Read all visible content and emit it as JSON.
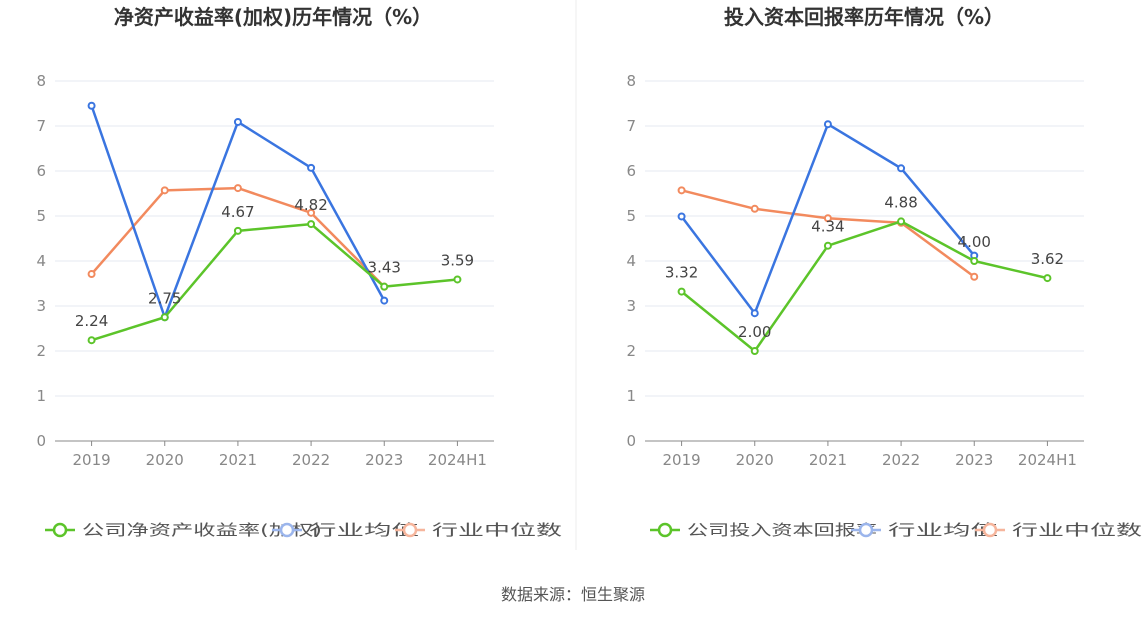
{
  "source": "数据来源：恒生聚源",
  "colors": {
    "company": "#5cc42a",
    "industry_avg": "#3a75e0",
    "industry_median": "#f28a5e",
    "legend_avg": "#9bb5ec",
    "legend_median": "#f6b59c",
    "grid": "#e6e9f2",
    "axis": "#888888"
  },
  "chart_data": [
    {
      "type": "line",
      "title": "净资产收益率(加权)历年情况（%）",
      "categories": [
        "2019",
        "2020",
        "2021",
        "2022",
        "2023",
        "2024H1"
      ],
      "ylim": [
        0,
        8
      ],
      "yticks": [
        "0",
        "1",
        "2",
        "3",
        "4",
        "5",
        "6",
        "7",
        "8"
      ],
      "grid": true,
      "legend_position": "bottom",
      "series": [
        {
          "name": "公司净资产收益率(加权)",
          "key": "company",
          "values": [
            2.24,
            2.75,
            4.67,
            4.82,
            3.43,
            3.59
          ],
          "labels": [
            "2.24",
            "2.75",
            "4.67",
            "4.82",
            "3.43",
            "3.59"
          ]
        },
        {
          "name": "行业均值",
          "key": "industry_avg",
          "values": [
            7.45,
            2.75,
            7.09,
            6.07,
            3.12,
            null
          ]
        },
        {
          "name": "行业中位数",
          "key": "industry_median",
          "values": [
            3.71,
            5.57,
            5.62,
            5.07,
            3.43,
            null
          ]
        }
      ]
    },
    {
      "type": "line",
      "title": "投入资本回报率历年情况（%）",
      "categories": [
        "2019",
        "2020",
        "2021",
        "2022",
        "2023",
        "2024H1"
      ],
      "ylim": [
        0,
        8
      ],
      "yticks": [
        "0",
        "1",
        "2",
        "3",
        "4",
        "5",
        "6",
        "7",
        "8"
      ],
      "grid": true,
      "legend_position": "bottom",
      "series": [
        {
          "name": "公司投入资本回报率",
          "key": "company",
          "values": [
            3.32,
            2.0,
            4.34,
            4.88,
            4.0,
            3.62
          ],
          "labels": [
            "3.32",
            "2.00",
            "4.34",
            "4.88",
            "4.00",
            "3.62"
          ]
        },
        {
          "name": "行业均值",
          "key": "industry_avg",
          "values": [
            4.99,
            2.84,
            7.04,
            6.06,
            4.12,
            null
          ]
        },
        {
          "name": "行业中位数",
          "key": "industry_median",
          "values": [
            5.57,
            5.16,
            4.95,
            4.85,
            3.65,
            null
          ]
        }
      ]
    }
  ]
}
